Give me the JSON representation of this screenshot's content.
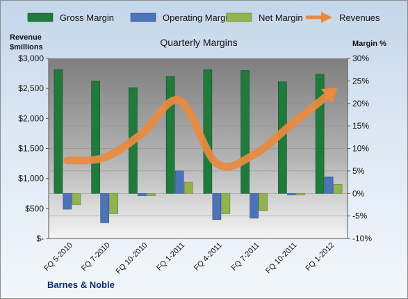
{
  "chart_data": {
    "type": "bar",
    "title": "Quarterly Margins",
    "company": "Barnes & Noble",
    "y_left_label": [
      "Revenue",
      "$millions"
    ],
    "y_right_label": "Margin %",
    "categories": [
      "FQ 5-2010",
      "FQ 7-2010",
      "FQ 10-2010",
      "FQ 1-2011",
      "FQ 4-2011",
      "FQ 7-2011",
      "FQ 10-2011",
      "FQ 1-2012"
    ],
    "ylim_right": [
      -10,
      30
    ],
    "ylim_left": [
      0,
      3000
    ],
    "y_left_ticks": [
      "$-",
      "$500",
      "$1,000",
      "$1,500",
      "$2,000",
      "$2,500",
      "$3,000"
    ],
    "y_right_ticks": [
      "-10%",
      "-5%",
      "0%",
      "5%",
      "10%",
      "15%",
      "20%",
      "25%",
      "30%"
    ],
    "series": [
      {
        "name": "Gross Margin",
        "axis": "right",
        "color": "#1f7a3c",
        "values": [
          27.5,
          25,
          23.5,
          26,
          27.5,
          27.3,
          24.8,
          26.5
        ]
      },
      {
        "name": "Operating Margin",
        "axis": "right",
        "color": "#4a73b8",
        "values": [
          -3.5,
          -6.5,
          -0.5,
          5,
          -5.8,
          -5.5,
          -0.3,
          3.7
        ]
      },
      {
        "name": "Net Margin",
        "axis": "right",
        "color": "#93b34e",
        "values": [
          -2.5,
          -4.5,
          -0.5,
          2.5,
          -4.5,
          -3.8,
          -0.3,
          2
        ]
      },
      {
        "name": "Revenues",
        "axis": "left",
        "color": "#ea8a3e",
        "type": "line",
        "values": [
          1300,
          1350,
          1750,
          2300,
          1250,
          1400,
          1900,
          2400
        ]
      }
    ],
    "grid": true,
    "legend": "top"
  }
}
